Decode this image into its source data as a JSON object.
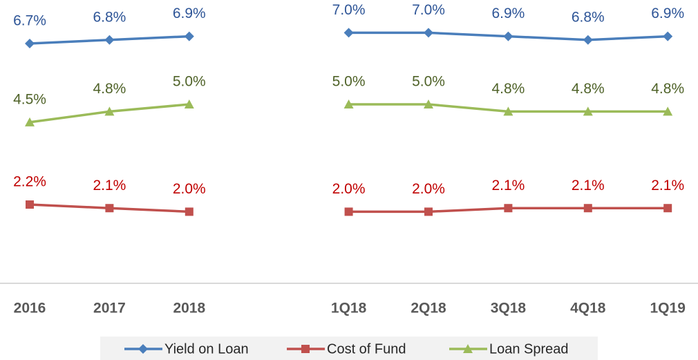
{
  "chart_data": {
    "type": "line",
    "categories": [
      "2016",
      "2017",
      "2018",
      null,
      "1Q18",
      "2Q18",
      "3Q18",
      "4Q18",
      "1Q19"
    ],
    "series": [
      {
        "name": "Yield on Loan",
        "color": "#4a7ebb",
        "label_color": "#2e5597",
        "marker": "diamond",
        "values": [
          6.7,
          6.8,
          6.9,
          null,
          7.0,
          7.0,
          6.9,
          6.8,
          6.9
        ],
        "value_labels": [
          "6.7%",
          "6.8%",
          "6.9%",
          null,
          "7.0%",
          "7.0%",
          "6.9%",
          "6.8%",
          "6.9%"
        ]
      },
      {
        "name": "Cost of Fund",
        "color": "#c0504d",
        "label_color": "#c00000",
        "marker": "square",
        "values": [
          2.2,
          2.1,
          2.0,
          null,
          2.0,
          2.0,
          2.1,
          2.1,
          2.1
        ],
        "value_labels": [
          "2.2%",
          "2.1%",
          "2.0%",
          null,
          "2.0%",
          "2.0%",
          "2.1%",
          "2.1%",
          "2.1%"
        ]
      },
      {
        "name": "Loan Spread",
        "color": "#9bbb59",
        "label_color": "#4f6228",
        "marker": "triangle",
        "values": [
          4.5,
          4.8,
          5.0,
          null,
          5.0,
          5.0,
          4.8,
          4.8,
          4.8
        ],
        "value_labels": [
          "4.5%",
          "4.8%",
          "5.0%",
          null,
          "5.0%",
          "5.0%",
          "4.8%",
          "4.8%",
          "4.8%"
        ]
      }
    ],
    "legend": "bottom"
  }
}
